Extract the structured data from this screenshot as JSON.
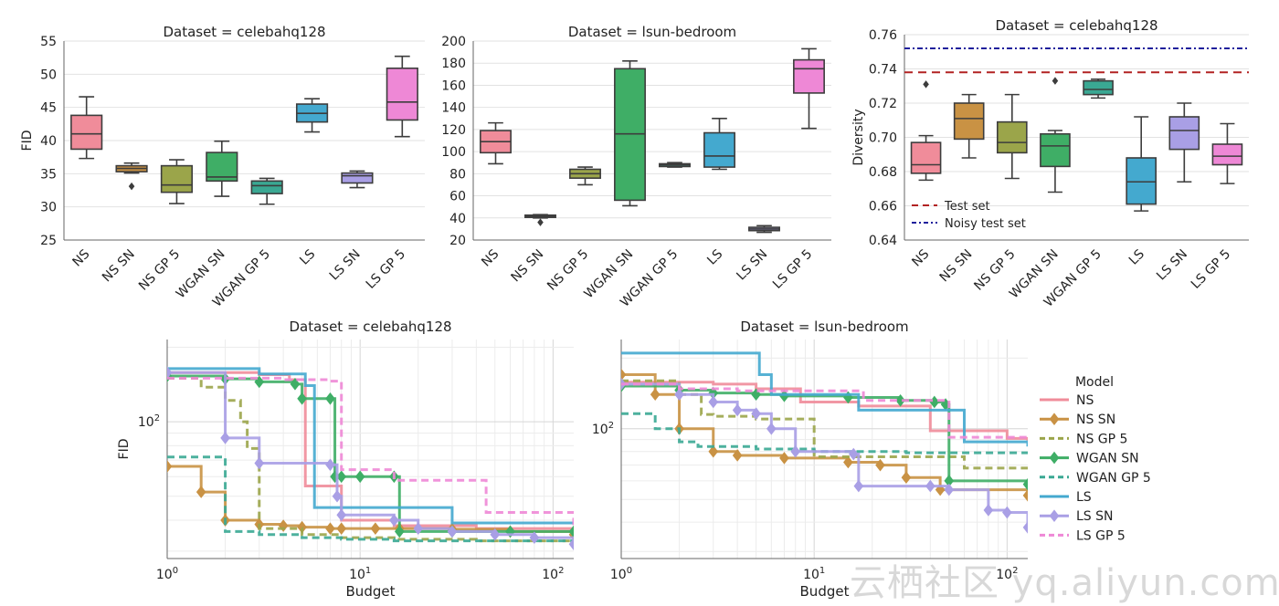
{
  "watermark": "云栖社区 yq.aliyun.com",
  "colors": {
    "NS": "#f08c9a",
    "NS SN": "#c99244",
    "NS GP 5": "#9ba54a",
    "WGAN SN": "#3fae66",
    "WGAN GP 5": "#3aa893",
    "LS": "#44a9cf",
    "LS SN": "#a99fe5",
    "LS GP 5": "#ee88d6"
  },
  "chart_data": [
    {
      "type": "box",
      "title": "Dataset = celebahq128",
      "xlabel": "",
      "ylabel": "FID",
      "ylim": [
        25,
        55
      ],
      "yticks": [
        25,
        30,
        35,
        40,
        45,
        50,
        55
      ],
      "categories": [
        "NS",
        "NS SN",
        "NS GP 5",
        "WGAN SN",
        "WGAN GP 5",
        "LS",
        "LS SN",
        "LS GP 5"
      ],
      "boxes": [
        {
          "min": 37.3,
          "q1": 38.7,
          "median": 41.0,
          "q3": 43.8,
          "max": 46.6,
          "outliers": []
        },
        {
          "min": 35.1,
          "q1": 35.3,
          "median": 35.8,
          "q3": 36.2,
          "max": 36.6,
          "outliers": [
            33.1
          ]
        },
        {
          "min": 30.5,
          "q1": 32.2,
          "median": 33.3,
          "q3": 36.2,
          "max": 37.1,
          "outliers": []
        },
        {
          "min": 31.6,
          "q1": 33.9,
          "median": 34.5,
          "q3": 38.2,
          "max": 39.9,
          "outliers": []
        },
        {
          "min": 30.4,
          "q1": 32.0,
          "median": 33.2,
          "q3": 33.9,
          "max": 34.3,
          "outliers": []
        },
        {
          "min": 41.3,
          "q1": 42.8,
          "median": 44.1,
          "q3": 45.5,
          "max": 46.3,
          "outliers": []
        },
        {
          "min": 32.9,
          "q1": 33.6,
          "median": 34.7,
          "q3": 35.1,
          "max": 35.4,
          "outliers": []
        },
        {
          "min": 40.6,
          "q1": 43.1,
          "median": 45.8,
          "q3": 50.9,
          "max": 52.7,
          "outliers": []
        }
      ]
    },
    {
      "type": "box",
      "title": "Dataset = lsun-bedroom",
      "xlabel": "",
      "ylabel": "",
      "ylim": [
        20,
        200
      ],
      "yticks": [
        20,
        40,
        60,
        80,
        100,
        120,
        140,
        160,
        180,
        200
      ],
      "categories": [
        "NS",
        "NS SN",
        "NS GP 5",
        "WGAN SN",
        "WGAN GP 5",
        "LS",
        "LS SN",
        "LS GP 5"
      ],
      "boxes": [
        {
          "min": 89,
          "q1": 99,
          "median": 109,
          "q3": 119,
          "max": 126,
          "outliers": []
        },
        {
          "min": 40,
          "q1": 40.5,
          "median": 41.5,
          "q3": 42.5,
          "max": 43,
          "outliers": [
            36
          ]
        },
        {
          "min": 70,
          "q1": 76,
          "median": 80,
          "q3": 84,
          "max": 86,
          "outliers": []
        },
        {
          "min": 51,
          "q1": 56,
          "median": 116,
          "q3": 175,
          "max": 182,
          "outliers": []
        },
        {
          "min": 86,
          "q1": 86.5,
          "median": 88,
          "q3": 89,
          "max": 90,
          "outliers": []
        },
        {
          "min": 84,
          "q1": 86,
          "median": 96,
          "q3": 117,
          "max": 130,
          "outliers": []
        },
        {
          "min": 27,
          "q1": 28.5,
          "median": 30,
          "q3": 31.5,
          "max": 33,
          "outliers": []
        },
        {
          "min": 121,
          "q1": 153,
          "median": 175,
          "q3": 183,
          "max": 193,
          "outliers": []
        }
      ]
    },
    {
      "type": "box",
      "title": "Dataset = celebahq128",
      "xlabel": "",
      "ylabel": "Diversity",
      "ylim": [
        0.64,
        0.76
      ],
      "yticks": [
        "0.64",
        "0.66",
        "0.68",
        "0.70",
        "0.72",
        "0.74",
        "0.76"
      ],
      "categories": [
        "NS",
        "NS SN",
        "NS GP 5",
        "WGAN SN",
        "WGAN GP 5",
        "LS",
        "LS SN",
        "LS GP 5"
      ],
      "boxes": [
        {
          "min": 0.675,
          "q1": 0.679,
          "median": 0.684,
          "q3": 0.697,
          "max": 0.701,
          "outliers": [
            0.731
          ]
        },
        {
          "min": 0.688,
          "q1": 0.699,
          "median": 0.711,
          "q3": 0.72,
          "max": 0.725,
          "outliers": []
        },
        {
          "min": 0.676,
          "q1": 0.691,
          "median": 0.697,
          "q3": 0.709,
          "max": 0.725,
          "outliers": []
        },
        {
          "min": 0.668,
          "q1": 0.683,
          "median": 0.695,
          "q3": 0.702,
          "max": 0.704,
          "outliers": [
            0.733
          ]
        },
        {
          "min": 0.723,
          "q1": 0.725,
          "median": 0.728,
          "q3": 0.733,
          "max": 0.734,
          "outliers": []
        },
        {
          "min": 0.657,
          "q1": 0.661,
          "median": 0.674,
          "q3": 0.688,
          "max": 0.712,
          "outliers": []
        },
        {
          "min": 0.674,
          "q1": 0.693,
          "median": 0.704,
          "q3": 0.712,
          "max": 0.72,
          "outliers": []
        },
        {
          "min": 0.673,
          "q1": 0.684,
          "median": 0.689,
          "q3": 0.696,
          "max": 0.708,
          "outliers": []
        }
      ],
      "reference_lines": [
        {
          "name": "Test set",
          "value": 0.738,
          "color": "#b22222",
          "style": "dashed"
        },
        {
          "name": "Noisy test set",
          "value": 0.752,
          "color": "#1f1f9c",
          "style": "dashdot"
        }
      ],
      "legend_position": "lower-left"
    },
    {
      "type": "line",
      "title": "Dataset = celebahq128",
      "xlabel": "Budget",
      "ylabel": "FID",
      "xscale": "log",
      "yscale": "log",
      "xlim": [
        1,
        128
      ],
      "ylim": [
        28,
        215
      ],
      "xtick_labels": [
        "10^0",
        "10^1",
        "10^2"
      ],
      "ytick_labels": [
        "10^2"
      ],
      "legend_position": "right",
      "legend_title": "Model",
      "series": [
        {
          "name": "NS",
          "style": "solid",
          "marker": null,
          "x": [
            1,
            3,
            4.3,
            5.2,
            7,
            8,
            15,
            40,
            128
          ],
          "y": [
            158,
            155,
            148,
            55,
            55,
            40,
            38,
            37,
            35
          ]
        },
        {
          "name": "NS SN",
          "style": "solid",
          "marker": "diamond",
          "x": [
            1,
            1.5,
            2,
            3,
            4,
            5,
            7,
            8,
            12,
            16,
            30,
            60,
            128
          ],
          "y": [
            66,
            52,
            40,
            38.5,
            38,
            37.5,
            37,
            37,
            37,
            37,
            36.8,
            36,
            35
          ]
        },
        {
          "name": "NS GP 5",
          "style": "dashed",
          "marker": null,
          "x": [
            1,
            1.5,
            2,
            2.4,
            2.6,
            3,
            5,
            8,
            15,
            40,
            128
          ],
          "y": [
            150,
            138,
            122,
            100,
            78,
            37,
            35,
            34,
            33.5,
            33,
            33
          ]
        },
        {
          "name": "WGAN SN",
          "style": "solid",
          "marker": "diamond",
          "x": [
            1,
            2,
            3,
            4.6,
            5,
            7,
            7.4,
            8,
            10,
            15,
            16,
            30,
            60,
            128
          ],
          "y": [
            153,
            149,
            145,
            142,
            124,
            124,
            60,
            60,
            60,
            60,
            36,
            36,
            36,
            36
          ]
        },
        {
          "name": "WGAN GP 5",
          "style": "dashed",
          "marker": null,
          "x": [
            1,
            2,
            3,
            5,
            8,
            15,
            40,
            128
          ],
          "y": [
            72,
            36,
            35,
            34,
            33.5,
            33,
            33,
            33
          ]
        },
        {
          "name": "LS",
          "style": "solid",
          "marker": null,
          "x": [
            1,
            3,
            5.2,
            5.8,
            10,
            30,
            128
          ],
          "y": [
            164,
            156,
            140,
            45,
            45,
            39,
            39
          ]
        },
        {
          "name": "LS SN",
          "style": "solid",
          "marker": "diamond",
          "x": [
            1,
            2,
            3,
            7,
            7.6,
            8,
            15,
            20,
            30,
            50,
            80,
            128
          ],
          "y": [
            158,
            86,
            68,
            67,
            50,
            42,
            40,
            37,
            36,
            35,
            34,
            32
          ]
        },
        {
          "name": "LS GP 5",
          "style": "dashed",
          "marker": null,
          "x": [
            1,
            4,
            7,
            8,
            15,
            40,
            45,
            128
          ],
          "y": [
            150,
            148,
            146,
            64,
            58,
            58,
            43,
            38
          ]
        }
      ]
    },
    {
      "type": "line",
      "title": "Dataset = lsun-bedroom",
      "xlabel": "Budget",
      "ylabel": "",
      "xscale": "log",
      "yscale": "log",
      "xlim": [
        1,
        128
      ],
      "ylim": [
        28,
        240
      ],
      "xtick_labels": [
        "10^0",
        "10^1",
        "10^2"
      ],
      "ytick_labels": [
        "10^2"
      ],
      "series": [
        {
          "name": "NS",
          "style": "solid",
          "marker": null,
          "x": [
            1,
            3,
            5,
            8.5,
            17,
            40,
            100,
            128
          ],
          "y": [
            158,
            155,
            148,
            130,
            125,
            98,
            91,
            89
          ]
        },
        {
          "name": "NS SN",
          "style": "solid",
          "marker": "diamond",
          "x": [
            1,
            1.5,
            2,
            3,
            4,
            7,
            15,
            22,
            30,
            45,
            128
          ],
          "y": [
            170,
            140,
            100,
            80,
            77,
            75,
            72,
            70,
            62,
            55,
            52
          ]
        },
        {
          "name": "NS GP 5",
          "style": "dashed",
          "marker": null,
          "x": [
            1,
            2,
            2.6,
            3,
            5,
            10,
            40,
            60,
            128
          ],
          "y": [
            160,
            140,
            115,
            113,
            110,
            76,
            76,
            68,
            68
          ]
        },
        {
          "name": "WGAN SN",
          "style": "solid",
          "marker": "diamond",
          "x": [
            1,
            2,
            3,
            5,
            7,
            15,
            28,
            42,
            48,
            50,
            128
          ],
          "y": [
            152,
            146,
            142,
            140,
            138,
            136,
            132,
            130,
            127,
            60,
            58
          ]
        },
        {
          "name": "WGAN GP 5",
          "style": "dashed",
          "marker": null,
          "x": [
            1,
            1.5,
            2,
            2.5,
            5,
            10,
            30,
            128
          ],
          "y": [
            116,
            100,
            88,
            84,
            82,
            80,
            79,
            79
          ]
        },
        {
          "name": "LS",
          "style": "solid",
          "marker": null,
          "x": [
            1,
            5.2,
            6,
            17,
            50,
            60,
            128
          ],
          "y": [
            210,
            170,
            140,
            120,
            120,
            88,
            84
          ]
        },
        {
          "name": "LS SN",
          "style": "solid",
          "marker": "diamond",
          "x": [
            1,
            2,
            3,
            4,
            5,
            6,
            8,
            16,
            17,
            40,
            50,
            80,
            100,
            128
          ],
          "y": [
            155,
            140,
            130,
            120,
            116,
            100,
            80,
            78,
            57,
            57,
            55,
            45,
            44,
            38
          ]
        },
        {
          "name": "LS GP 5",
          "style": "dashed",
          "marker": null,
          "x": [
            1,
            2,
            4,
            16,
            18,
            40,
            50,
            128
          ],
          "y": [
            155,
            148,
            145,
            145,
            132,
            132,
            92,
            90
          ]
        }
      ]
    }
  ]
}
